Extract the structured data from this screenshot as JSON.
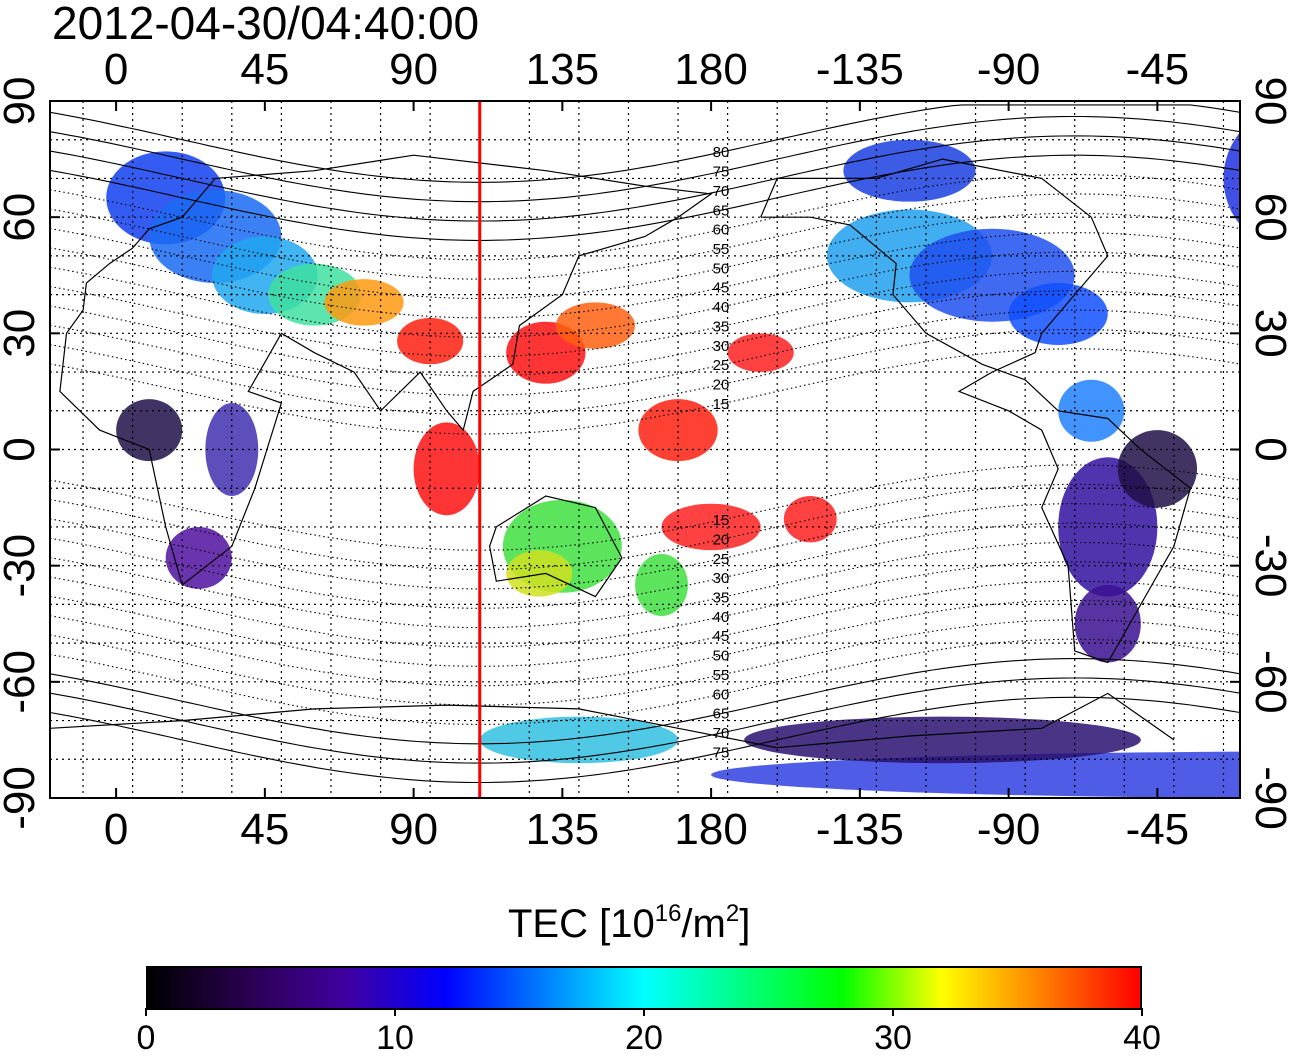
{
  "title": "2012-04-30/04:40:00",
  "map": {
    "top_lon_ticks": [
      "0",
      "45",
      "90",
      "135",
      "180",
      "-135",
      "-90",
      "-45"
    ],
    "bottom_lon_ticks": [
      "0",
      "45",
      "90",
      "135",
      "180",
      "-135",
      "-90",
      "-45"
    ],
    "left_lat_ticks": [
      "90",
      "60",
      "30",
      "0",
      "-30",
      "-60",
      "-90"
    ],
    "right_lat_ticks": [
      "90",
      "60",
      "30",
      "0",
      "-30",
      "-60",
      "-90"
    ],
    "contour_labels_north": [
      "80",
      "75",
      "70",
      "65",
      "60",
      "55",
      "50",
      "45",
      "40",
      "35",
      "30",
      "25",
      "20",
      "15"
    ],
    "contour_labels_south": [
      "15",
      "20",
      "25",
      "30",
      "35",
      "40",
      "45",
      "50",
      "55",
      "60",
      "65",
      "70",
      "75"
    ],
    "marker_color": "#ff0000",
    "marker_longitude": 110
  },
  "colorbar": {
    "title_prefix": "TEC  [10",
    "title_sup1": "16",
    "title_mid": "/m",
    "title_sup2": "2",
    "title_suffix": "]",
    "min": 0,
    "max": 40,
    "labels": [
      "0",
      "10",
      "20",
      "30",
      "40"
    ],
    "colors": [
      "#000000",
      "#2a0050",
      "#4000a0",
      "#0000ff",
      "#0080ff",
      "#00ffff",
      "#00ff80",
      "#00ff00",
      "#ffff00",
      "#ff8000",
      "#ff0000"
    ]
  }
}
